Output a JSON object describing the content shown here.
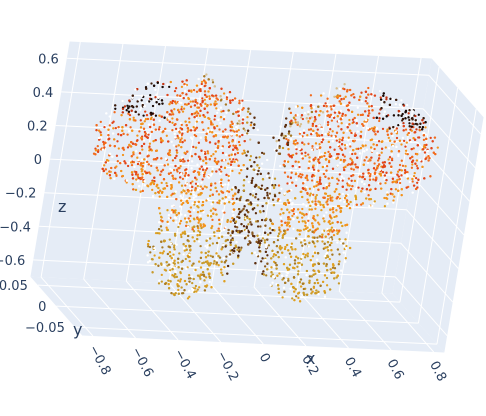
{
  "chart_data": {
    "type": "scatter",
    "subtype": "3d point cloud (butterfly)",
    "title": "",
    "xlabel": "x",
    "ylabel": "y",
    "zlabel": "z",
    "xlim": [
      -0.85,
      0.85
    ],
    "ylim": [
      -0.07,
      0.07
    ],
    "zlim": [
      -0.7,
      0.7
    ],
    "x_ticks": [
      {
        "value": -0.8,
        "label": "−0.8"
      },
      {
        "value": -0.6,
        "label": "−0.6"
      },
      {
        "value": -0.4,
        "label": "−0.4"
      },
      {
        "value": -0.2,
        "label": "−0.2"
      },
      {
        "value": 0,
        "label": "0"
      },
      {
        "value": 0.2,
        "label": "0.2"
      },
      {
        "value": 0.4,
        "label": "0.4"
      },
      {
        "value": 0.6,
        "label": "0.6"
      },
      {
        "value": 0.8,
        "label": "0.8"
      }
    ],
    "y_ticks": [
      {
        "value": 0.05,
        "label": "0.05"
      },
      {
        "value": 0,
        "label": "0"
      },
      {
        "value": -0.05,
        "label": "−0.05"
      }
    ],
    "z_ticks": [
      {
        "value": 0.6,
        "label": "0.6"
      },
      {
        "value": 0.4,
        "label": "0.4"
      },
      {
        "value": 0.2,
        "label": "0.2"
      },
      {
        "value": 0,
        "label": "0"
      },
      {
        "value": -0.2,
        "label": "−0.2"
      },
      {
        "value": -0.4,
        "label": "−0.4"
      },
      {
        "value": -0.6,
        "label": "−0.6"
      }
    ],
    "grid": true,
    "legend": "none",
    "scene_background": "#e5ecf6",
    "grid_color": "#ffffff",
    "text_color": "#2a3f5f",
    "marker_colors": [
      "#1a0a05",
      "#3b1a0a",
      "#5c2e0f",
      "#8b3a0e",
      "#c53512",
      "#e2461a",
      "#f26b1d",
      "#f3931c",
      "#e0a020",
      "#c89a2a",
      "#a87a25",
      "#7a5418",
      "#ffffff"
    ]
  }
}
